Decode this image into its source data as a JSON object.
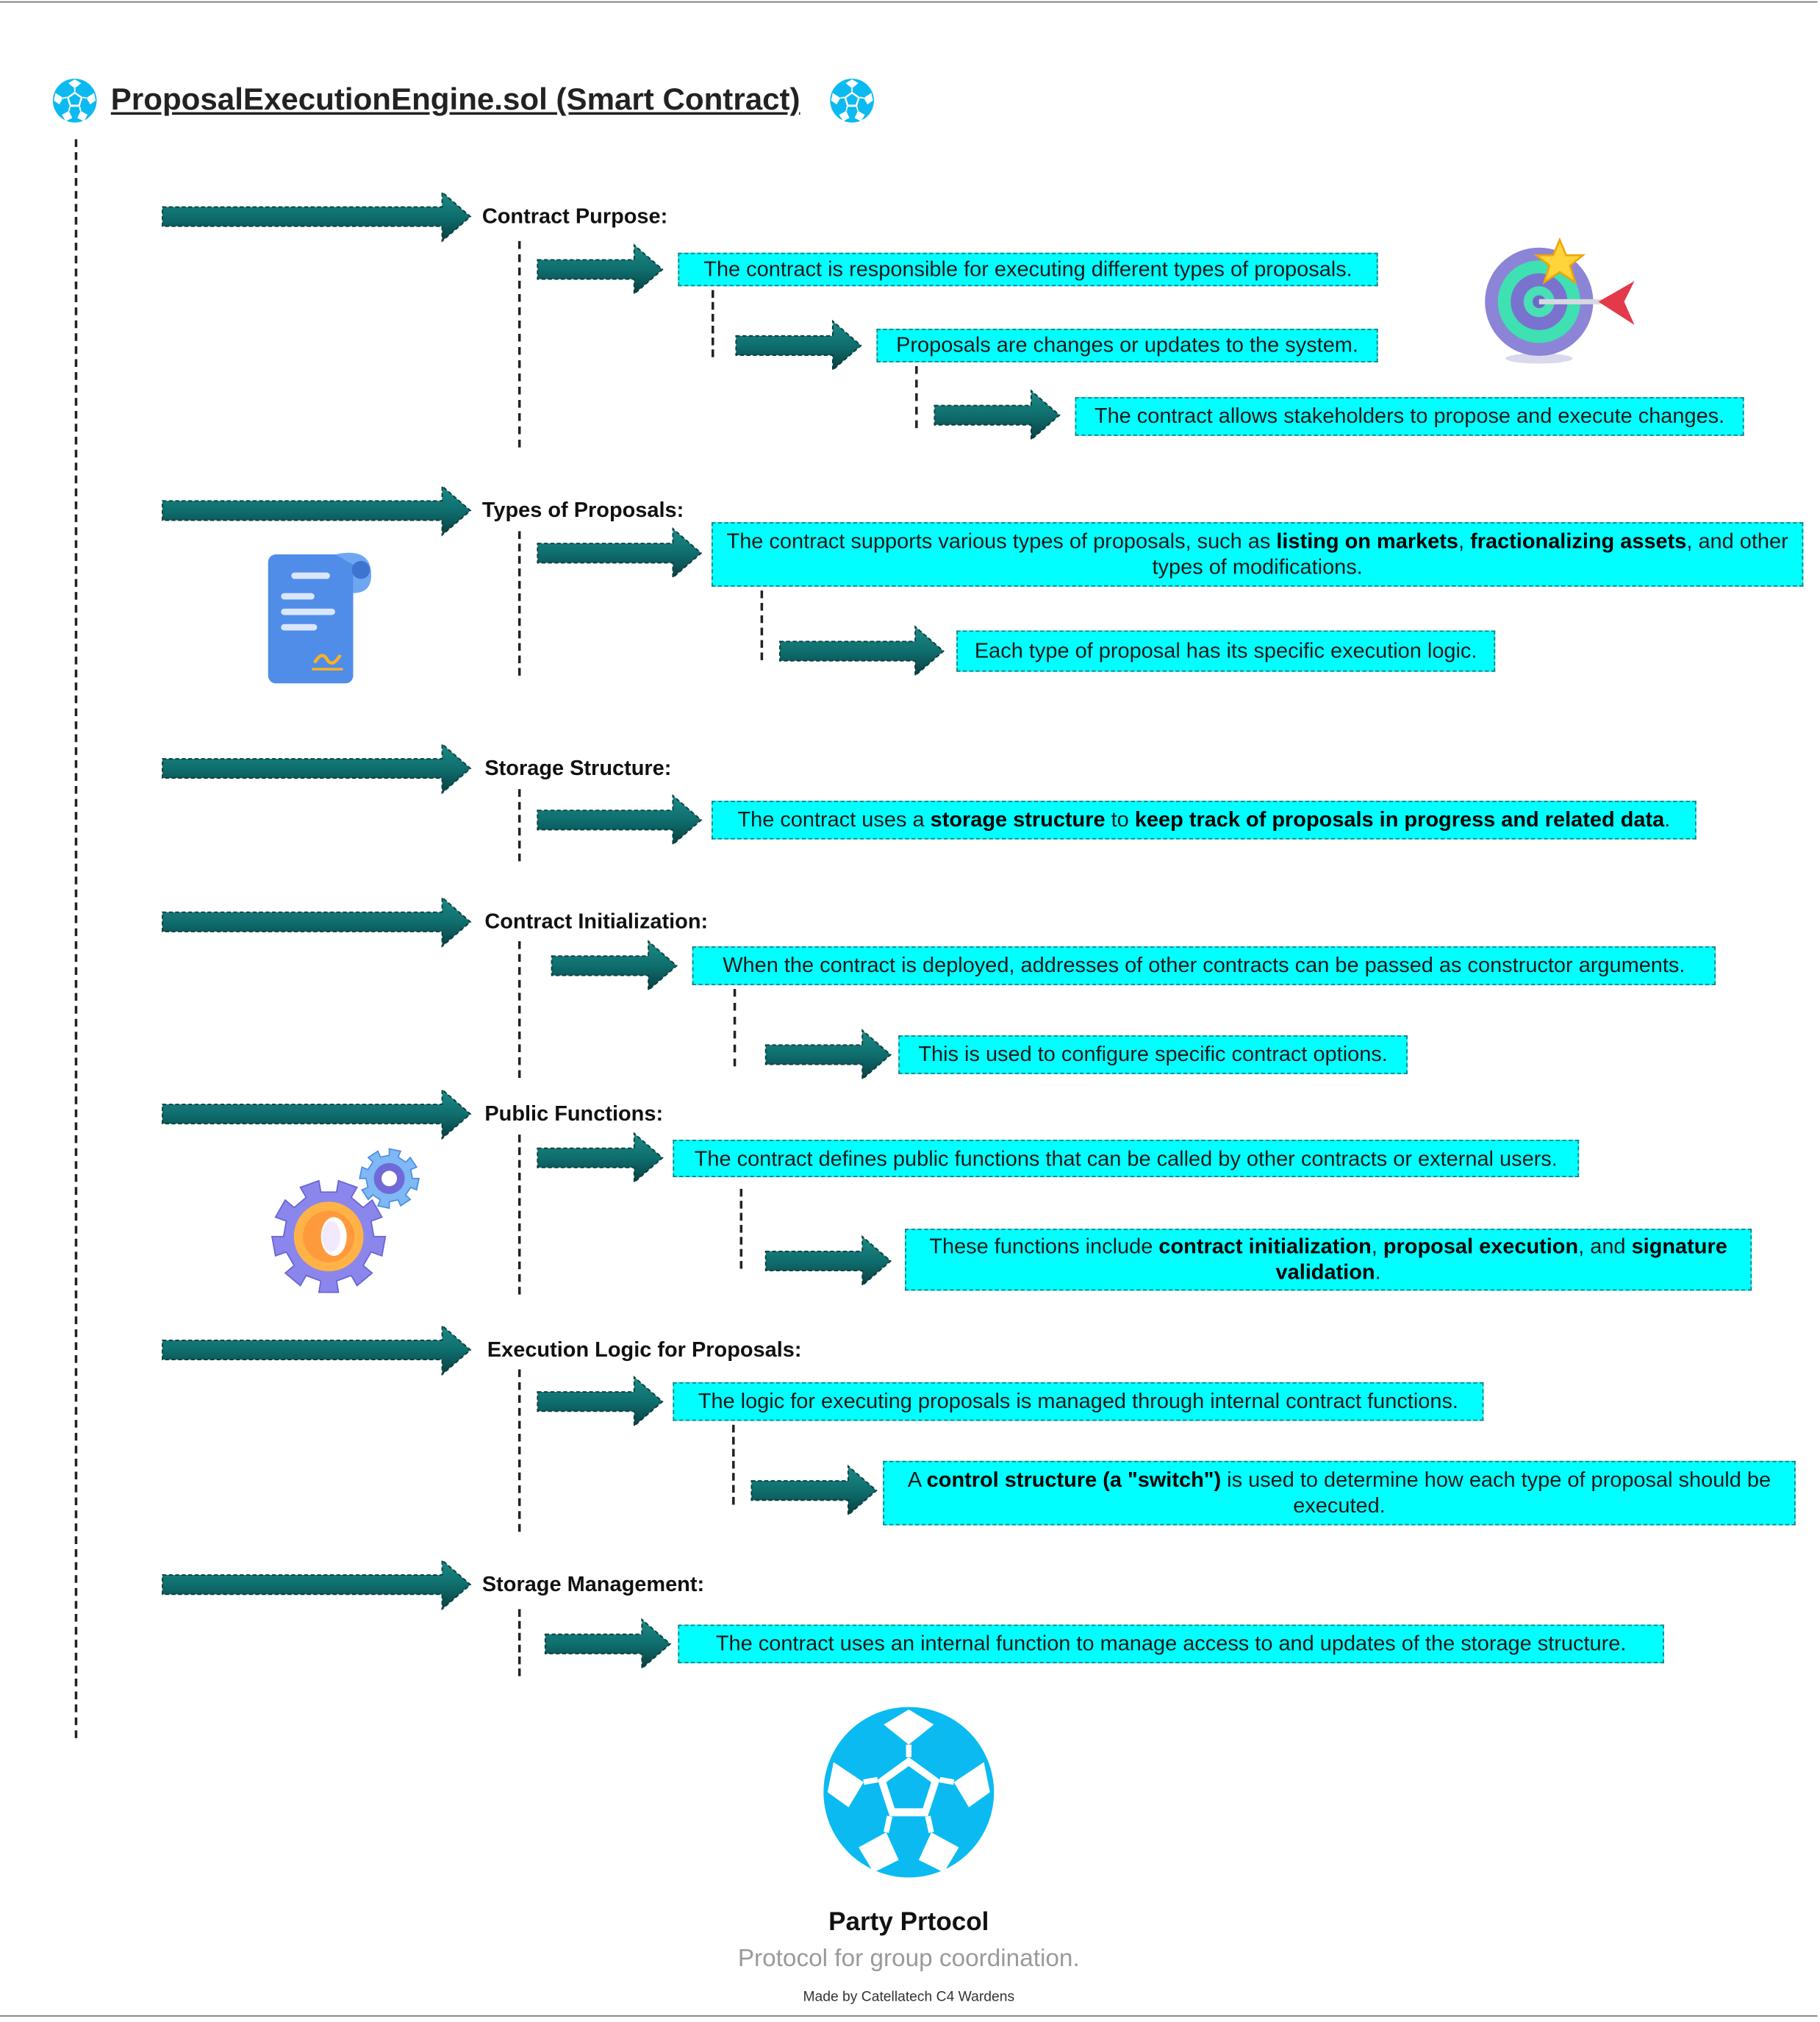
{
  "title": "ProposalExecutionEngine.sol (Smart Contract)",
  "accent_color": "#00ffff",
  "arrow_color": "#0f6e6e",
  "logo_color": "#0bbaf0",
  "sections": [
    {
      "heading": "Contract Purpose:",
      "items": [
        {
          "segments": [
            {
              "t": "The contract is responsible for executing different types of proposals."
            }
          ]
        },
        {
          "segments": [
            {
              "t": "Proposals are changes or updates to the system."
            }
          ]
        },
        {
          "segments": [
            {
              "t": "The contract allows stakeholders to propose and execute changes."
            }
          ]
        }
      ]
    },
    {
      "heading": "Types of Proposals:",
      "items": [
        {
          "segments": [
            {
              "t": "The contract supports various types of proposals, such as "
            },
            {
              "t": "listing on markets",
              "b": true
            },
            {
              "t": ", "
            },
            {
              "t": "fractionalizing assets",
              "b": true
            },
            {
              "t": ", and other types of modifications."
            }
          ]
        },
        {
          "segments": [
            {
              "t": "Each type of proposal has its specific execution logic."
            }
          ]
        }
      ]
    },
    {
      "heading": "Storage Structure:",
      "items": [
        {
          "segments": [
            {
              "t": "The contract uses a "
            },
            {
              "t": "storage structure",
              "b": true
            },
            {
              "t": " to "
            },
            {
              "t": "keep track of proposals in progress and related data",
              "b": true
            },
            {
              "t": "."
            }
          ]
        }
      ]
    },
    {
      "heading": "Contract Initialization:",
      "items": [
        {
          "segments": [
            {
              "t": "When the contract is deployed, addresses of other contracts can be passed as constructor arguments."
            }
          ]
        },
        {
          "segments": [
            {
              "t": "This is used to configure specific contract options."
            }
          ]
        }
      ]
    },
    {
      "heading": "Public Functions:",
      "items": [
        {
          "segments": [
            {
              "t": "The contract defines public functions that can be called by other contracts or external users."
            }
          ]
        },
        {
          "segments": [
            {
              "t": "These functions include "
            },
            {
              "t": "contract initialization",
              "b": true
            },
            {
              "t": ", "
            },
            {
              "t": "proposal execution",
              "b": true
            },
            {
              "t": ", and "
            },
            {
              "t": "signature validation",
              "b": true
            },
            {
              "t": "."
            }
          ]
        }
      ]
    },
    {
      "heading": "Execution Logic for Proposals:",
      "items": [
        {
          "segments": [
            {
              "t": "The logic for executing proposals is managed through internal contract functions."
            }
          ]
        },
        {
          "segments": [
            {
              "t": "A "
            },
            {
              "t": "control structure (a \"switch\")",
              "b": true
            },
            {
              "t": " is used to determine how each type of proposal should be executed."
            }
          ]
        }
      ]
    },
    {
      "heading": "Storage Management:",
      "items": [
        {
          "segments": [
            {
              "t": "The contract uses an internal function to manage access to and updates of the storage structure."
            }
          ]
        }
      ]
    }
  ],
  "icons": [
    "target-icon",
    "document-icon",
    "gears-icon"
  ],
  "footer": {
    "name": "Party Prtocol",
    "tagline": "Protocol for group coordination.",
    "credit": "Made by Catellatech C4 Wardens"
  }
}
